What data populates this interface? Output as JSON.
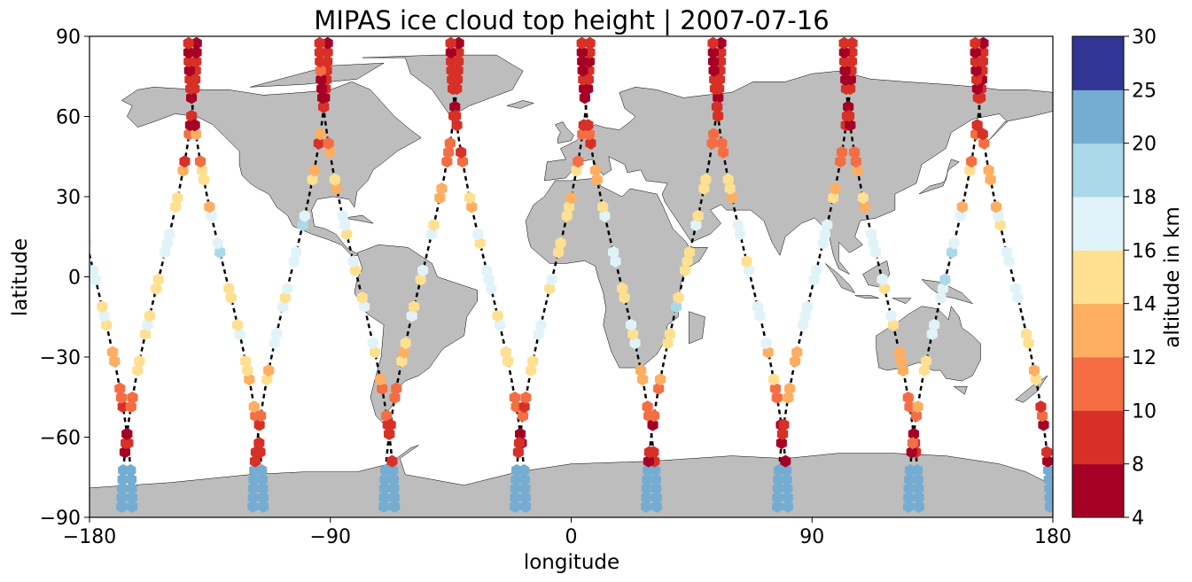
{
  "chart_data": {
    "type": "scatter",
    "title": "MIPAS ice cloud top height | 2007-07-16",
    "xlabel": "longitude",
    "ylabel": "latitude",
    "xlim": [
      -180,
      180
    ],
    "ylim": [
      -90,
      90
    ],
    "x_ticks": [
      "−180",
      "−90",
      "0",
      "90",
      "180"
    ],
    "x_tick_values": [
      -180,
      -90,
      0,
      90,
      180
    ],
    "y_ticks": [
      "90",
      "60",
      "30",
      "0",
      "−30",
      "−60",
      "−90"
    ],
    "y_tick_values": [
      90,
      60,
      30,
      0,
      -30,
      -60,
      -90
    ],
    "grid": false,
    "basemap": "world coastlines, land filled gray",
    "land_color": "#bdbdbd",
    "track_color": "#000000",
    "marker": "hexagon",
    "colorbar": {
      "label": "altitude in km",
      "boundaries": [
        4,
        8,
        10,
        12,
        14,
        16,
        18,
        20,
        25,
        30
      ],
      "tick_labels": [
        "4",
        "8",
        "10",
        "12",
        "14",
        "16",
        "18",
        "20",
        "25",
        "30"
      ],
      "colors": [
        "#a50026",
        "#d73027",
        "#f46d43",
        "#fdae61",
        "#fee090",
        "#e0f3f8",
        "#abd9e9",
        "#74add1",
        "#313695"
      ]
    },
    "orbits": [
      {
        "lon0": -178,
        "dir": -1
      },
      {
        "lon0": -154,
        "dir": 1
      },
      {
        "lon0": -129,
        "dir": -1
      },
      {
        "lon0": -105,
        "dir": 1
      },
      {
        "lon0": -80,
        "dir": -1
      },
      {
        "lon0": -56,
        "dir": 1
      },
      {
        "lon0": -31,
        "dir": -1
      },
      {
        "lon0": -7,
        "dir": 1
      },
      {
        "lon0": 18,
        "dir": -1
      },
      {
        "lon0": 42,
        "dir": 1
      },
      {
        "lon0": 67,
        "dir": -1
      },
      {
        "lon0": 91,
        "dir": 1
      },
      {
        "lon0": 116,
        "dir": -1
      },
      {
        "lon0": 140,
        "dir": 1
      },
      {
        "lon0": 165,
        "dir": -1
      }
    ]
  }
}
